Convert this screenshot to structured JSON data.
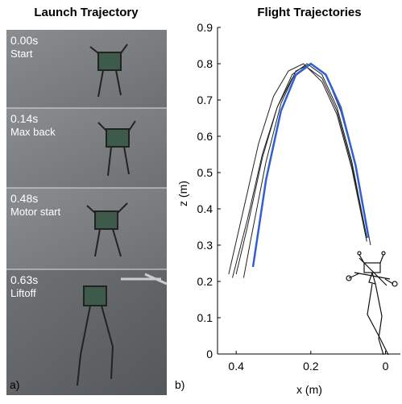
{
  "panel_a": {
    "title": "Launch Trajectory",
    "label": "a)",
    "frames": [
      {
        "time": "0.00s",
        "caption": "Start"
      },
      {
        "time": "0.14s",
        "caption": "Max back"
      },
      {
        "time": "0.48s",
        "caption": "Motor start"
      },
      {
        "time": "0.63s",
        "caption": "Liftoff"
      }
    ]
  },
  "chart_data": {
    "type": "line",
    "title": "Flight Trajectories",
    "panel_label": "b)",
    "x_label": "x (m)",
    "y_label": "z (m)",
    "xlim": [
      0.45,
      -0.04
    ],
    "ylim": [
      0,
      0.9
    ],
    "xticks": [
      0.4,
      0.2,
      0
    ],
    "yticks": [
      0,
      0.1,
      0.2,
      0.3,
      0.4,
      0.5,
      0.6,
      0.7,
      0.8,
      0.9
    ],
    "series": [
      {
        "color": "#222222",
        "x": [
          0.05,
          0.09,
          0.13,
          0.17,
          0.21,
          0.25,
          0.29,
          0.33,
          0.37,
          0.4
        ],
        "values": [
          0.32,
          0.53,
          0.68,
          0.77,
          0.8,
          0.77,
          0.68,
          0.54,
          0.35,
          0.22
        ]
      },
      {
        "color": "#222222",
        "x": [
          0.05,
          0.09,
          0.13,
          0.17,
          0.21,
          0.25,
          0.29,
          0.33,
          0.37,
          0.41
        ],
        "values": [
          0.32,
          0.52,
          0.67,
          0.76,
          0.79,
          0.76,
          0.68,
          0.55,
          0.37,
          0.21
        ]
      },
      {
        "color": "#222222",
        "x": [
          0.04,
          0.08,
          0.12,
          0.16,
          0.2,
          0.24,
          0.28,
          0.32,
          0.36,
          0.38
        ],
        "values": [
          0.3,
          0.52,
          0.67,
          0.77,
          0.8,
          0.78,
          0.69,
          0.53,
          0.32,
          0.21
        ]
      },
      {
        "color": "#222222",
        "x": [
          0.05,
          0.09,
          0.13,
          0.17,
          0.22,
          0.26,
          0.3,
          0.34,
          0.38,
          0.42
        ],
        "values": [
          0.31,
          0.51,
          0.66,
          0.75,
          0.8,
          0.78,
          0.71,
          0.58,
          0.4,
          0.22
        ]
      },
      {
        "color": "#2f5fd0",
        "x": [
          0.045,
          0.08,
          0.12,
          0.16,
          0.2,
          0.24,
          0.28,
          0.32,
          0.355
        ],
        "values": [
          0.32,
          0.52,
          0.68,
          0.77,
          0.8,
          0.77,
          0.67,
          0.48,
          0.24
        ]
      }
    ]
  }
}
